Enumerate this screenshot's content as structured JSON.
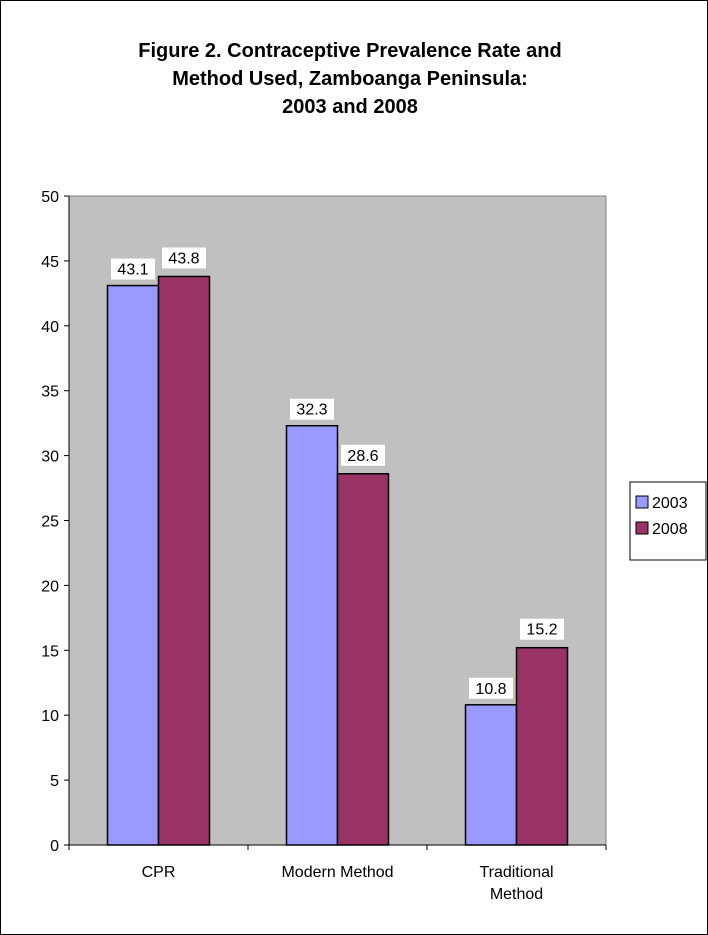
{
  "chart_data": {
    "type": "bar",
    "title_lines": [
      "Figure 2. Contraceptive Prevalence Rate and",
      "Method Used, Zamboanga Peninsula:",
      "2003 and 2008"
    ],
    "categories": [
      [
        "CPR"
      ],
      [
        "Modern Method"
      ],
      [
        "Traditional",
        "Method"
      ]
    ],
    "series": [
      {
        "name": "2003",
        "color": "#9999FF",
        "values": [
          43.1,
          32.3,
          10.8
        ],
        "labels": [
          "43.1",
          "32.3",
          "10.8"
        ]
      },
      {
        "name": "2008",
        "color": "#993366",
        "values": [
          43.8,
          28.6,
          15.2
        ],
        "labels": [
          "43.8",
          "28.6",
          "15.2"
        ]
      }
    ],
    "ylim": [
      0,
      50
    ],
    "yticks": [
      0,
      5,
      10,
      15,
      20,
      25,
      30,
      35,
      40,
      45,
      50
    ],
    "plot_background": "#C0C0C0",
    "grid": false,
    "legend_position": "right"
  }
}
